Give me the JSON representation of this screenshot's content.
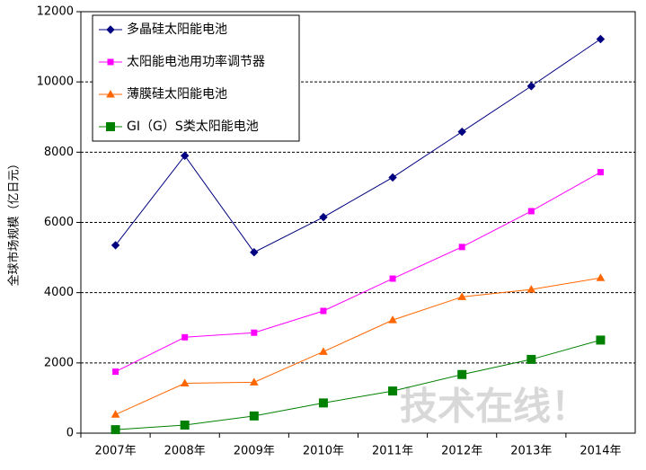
{
  "chart_data": {
    "type": "line",
    "y_label": "全球市场规模（亿日元）",
    "watermark": "技术在线！",
    "categories": [
      "2007年",
      "2008年",
      "2009年",
      "2010年",
      "2011年",
      "2012年",
      "2013年",
      "2014年"
    ],
    "series": [
      {
        "name": "多晶硅太阳能电池",
        "color": "#000080",
        "marker": "diamond",
        "values": [
          5350,
          7900,
          5150,
          6150,
          7280,
          8580,
          9880,
          11220
        ]
      },
      {
        "name": "太阳能电池用功率调节器",
        "color": "#ff00ff",
        "marker": "square",
        "values": [
          1750,
          2730,
          2860,
          3480,
          4400,
          5300,
          6320,
          7430
        ]
      },
      {
        "name": "薄膜硅太阳能电池",
        "color": "#ff6600",
        "marker": "triangle",
        "values": [
          530,
          1420,
          1450,
          2320,
          3220,
          3880,
          4090,
          4420
        ]
      },
      {
        "name": "GI（G）S类太阳能电池",
        "color": "#008000",
        "marker": "bigsquare",
        "values": [
          100,
          230,
          490,
          860,
          1200,
          1670,
          2100,
          2650
        ]
      }
    ],
    "ylim": [
      0,
      12000
    ],
    "yticks": [
      0,
      2000,
      4000,
      6000,
      8000,
      10000,
      12000
    ],
    "grid": true,
    "legend": "top-left"
  }
}
